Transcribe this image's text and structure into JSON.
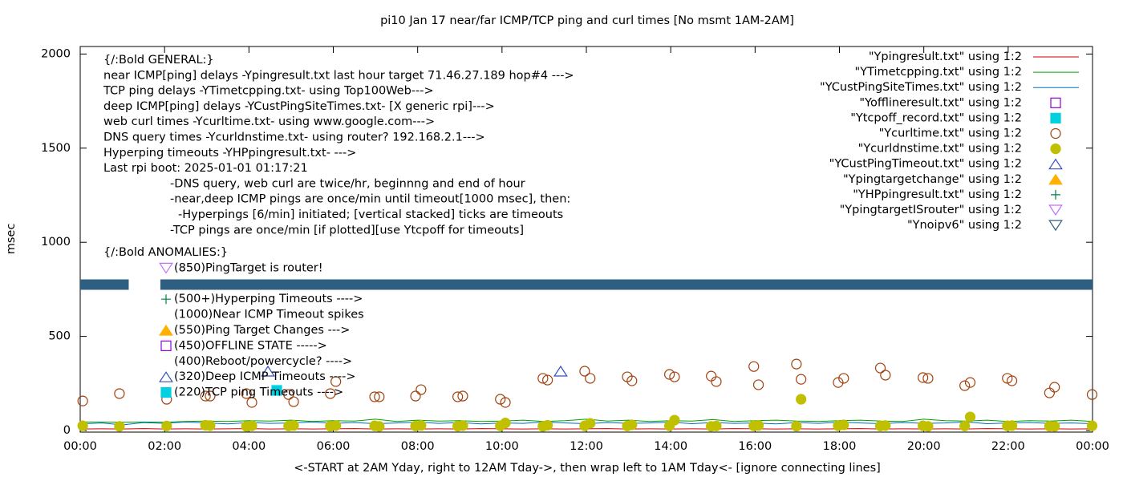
{
  "chart_data": {
    "type": "line",
    "title": "pi10 Jan 17  near/far ICMP/TCP ping and curl times [No msmt 1AM-2AM]",
    "xlabel": "<-START at 2AM Yday, right to 12AM Tday->, then wrap left to 1AM Tday<- [ignore connecting lines]",
    "ylabel": "msec",
    "xlim": [
      0,
      24
    ],
    "xticks": [
      {
        "value": 0,
        "label": "00:00"
      },
      {
        "value": 2,
        "label": "02:00"
      },
      {
        "value": 4,
        "label": "04:00"
      },
      {
        "value": 6,
        "label": "06:00"
      },
      {
        "value": 8,
        "label": "08:00"
      },
      {
        "value": 10,
        "label": "10:00"
      },
      {
        "value": 12,
        "label": "12:00"
      },
      {
        "value": 14,
        "label": "14:00"
      },
      {
        "value": 16,
        "label": "16:00"
      },
      {
        "value": 18,
        "label": "18:00"
      },
      {
        "value": 20,
        "label": "20:00"
      },
      {
        "value": 22,
        "label": "22:00"
      },
      {
        "value": 24,
        "label": "00:00"
      }
    ],
    "ylim": [
      0,
      2040
    ],
    "yticks": [
      0,
      500,
      1000,
      1500,
      2000
    ],
    "grid": false,
    "legend": "top-right",
    "annotations": [
      "{/:Bold GENERAL:}",
      "near ICMP[ping] delays -Ypingresult.txt last hour target 71.46.27.189 hop#4 --->",
      "TCP ping delays -YTimetcpping.txt- using Top100Web--->",
      "deep ICMP[ping] delays -YCustPingSiteTimes.txt- [X generic rpi]--->",
      "web curl times -Ycurltime.txt- using www.google.com--->",
      "DNS query times -Ycurldnstime.txt- using router? 192.168.2.1--->",
      "Hyperping timeouts -YHPpingresult.txt- --->",
      "Last rpi boot: 2025-01-01 01:17:21",
      "-DNS query, web curl are twice/hr, beginnng and end of hour",
      "-near,deep ICMP pings are once/min until timeout[1000 msec], then:",
      "-Hyperpings [6/min] initiated; [vertical stacked] ticks are timeouts",
      "-TCP pings are once/min [if plotted][use Ytcpoff for timeouts]",
      "{/:Bold ANOMALIES:}",
      "(850)PingTarget is router!",
      "(500+)Hyperping Timeouts ---->",
      "(1000)Near ICMP Timeout spikes",
      "(550)Ping Target Changes --->",
      "(450)OFFLINE STATE ----->",
      "(400)Reboot/powercycle? ---->",
      "(320)Deep ICMP Timeouts ---->",
      "(220)TCP ping Timeouts ---->"
    ],
    "series": [
      {
        "name": "\"Ypingresult.txt\" using 1:2",
        "color": "#cc0000",
        "marker": "line",
        "x": [
          0,
          0.5,
          1,
          1.5,
          2,
          2.5,
          3,
          3.5,
          4,
          4.5,
          5,
          5.5,
          6,
          6.5,
          7,
          7.5,
          8,
          8.5,
          9,
          9.5,
          10,
          10.5,
          11,
          11.5,
          12,
          12.5,
          13,
          13.5,
          14,
          14.5,
          15,
          15.5,
          16,
          16.5,
          17,
          17.5,
          18,
          18.5,
          19,
          19.5,
          20,
          20.5,
          21,
          21.5,
          22,
          22.5,
          23,
          23.5,
          24
        ],
        "values": [
          8,
          9,
          8,
          10,
          8,
          9,
          8,
          9,
          10,
          8,
          9,
          8,
          9,
          10,
          8,
          9,
          8,
          9,
          8,
          10,
          9,
          8,
          9,
          8,
          9,
          10,
          8,
          9,
          8,
          9,
          8,
          10,
          9,
          8,
          9,
          8,
          9,
          10,
          8,
          9,
          8,
          9,
          8,
          10,
          9,
          8,
          9,
          8,
          9
        ]
      },
      {
        "name": "\"YTimetcpping.txt\" using 1:2",
        "color": "#00a000",
        "marker": "line",
        "x": [
          0,
          0.5,
          1,
          1.5,
          2,
          2.5,
          3,
          3.5,
          4,
          4.5,
          5,
          5.5,
          6,
          6.5,
          7,
          7.5,
          8,
          8.5,
          9,
          9.5,
          10,
          10.5,
          11,
          11.5,
          12,
          12.5,
          13,
          13.5,
          14,
          14.5,
          15,
          15.5,
          16,
          16.5,
          17,
          17.5,
          18,
          18.5,
          19,
          19.5,
          20,
          20.5,
          21,
          21.5,
          22,
          22.5,
          23,
          23.5,
          24
        ],
        "values": [
          45,
          45,
          44,
          45,
          44,
          48,
          50,
          48,
          52,
          50,
          55,
          48,
          52,
          50,
          60,
          48,
          55,
          50,
          52,
          48,
          50,
          55,
          48,
          52,
          60,
          50,
          55,
          48,
          52,
          50,
          58,
          48,
          52,
          55,
          50,
          48,
          52,
          55,
          50,
          48,
          60,
          52,
          50,
          55,
          48,
          52,
          50,
          55,
          48
        ]
      },
      {
        "name": "\"YCustPingSiteTimes.txt\" using 1:2",
        "color": "#0070c0",
        "marker": "line",
        "x": [
          0,
          0.5,
          1,
          1.5,
          2,
          2.5,
          3,
          3.5,
          4,
          4.5,
          5,
          5.5,
          6,
          6.5,
          7,
          7.5,
          8,
          8.5,
          9,
          9.5,
          10,
          10.5,
          11,
          11.5,
          12,
          12.5,
          13,
          13.5,
          14,
          14.5,
          15,
          15.5,
          16,
          16.5,
          17,
          17.5,
          18,
          18.5,
          19,
          19.5,
          20,
          20.5,
          21,
          21.5,
          22,
          22.5,
          23,
          23.5,
          24
        ],
        "values": [
          35,
          40,
          30,
          42,
          38,
          45,
          40,
          35,
          42,
          38,
          40,
          45,
          38,
          42,
          36,
          40,
          44,
          38,
          42,
          35,
          40,
          38,
          45,
          40,
          36,
          42,
          38,
          40,
          44,
          36,
          42,
          38,
          40,
          35,
          42,
          38,
          44,
          40,
          36,
          42,
          38,
          40,
          45,
          36,
          40,
          42,
          38,
          40,
          36
        ]
      },
      {
        "name": "\"Yofflineresult.txt\" using 1:2",
        "color": "#9400d3",
        "marker": "square-open",
        "x": [],
        "values": []
      },
      {
        "name": "\"Ytcpoff_record.txt\" using 1:2",
        "color": "#00d0e0",
        "marker": "square",
        "x": [
          4.66
        ],
        "values": [
          213
        ]
      },
      {
        "name": "\"Ycurltime.txt\" using 1:2",
        "color": "#a0410d",
        "marker": "circle-open",
        "x": [
          0.06,
          0.93,
          2.05,
          2.97,
          3.08,
          3.94,
          4.07,
          4.94,
          5.06,
          5.93,
          6.06,
          6.98,
          7.09,
          7.95,
          8.08,
          8.95,
          9.07,
          9.96,
          10.08,
          10.97,
          11.08,
          11.96,
          12.09,
          12.97,
          13.08,
          13.97,
          14.09,
          14.96,
          15.08,
          15.97,
          16.08,
          16.98,
          17.09,
          17.97,
          18.1,
          18.97,
          19.09,
          19.98,
          20.1,
          20.97,
          21.1,
          21.98,
          22.09,
          22.98,
          23.1,
          23.99
        ],
        "values": [
          157,
          196,
          166,
          183,
          183,
          196,
          149,
          191,
          153,
          196,
          260,
          179,
          179,
          183,
          217,
          179,
          183,
          166,
          149,
          277,
          268,
          315,
          277,
          285,
          264,
          298,
          285,
          289,
          260,
          340,
          243,
          353,
          272,
          255,
          277,
          332,
          294,
          281,
          277,
          238,
          255,
          277,
          264,
          200,
          230,
          191
        ]
      },
      {
        "name": "\"Ycurldnstime.txt\" using 1:2",
        "color": "#c0c000",
        "marker": "circle",
        "x": [
          0.06,
          0.93,
          2.05,
          2.97,
          3.08,
          3.94,
          4.07,
          4.94,
          5.06,
          5.93,
          6.06,
          6.98,
          7.09,
          7.95,
          8.08,
          8.95,
          9.07,
          9.96,
          10.08,
          10.97,
          11.08,
          11.96,
          12.09,
          12.97,
          13.08,
          13.97,
          14.09,
          14.96,
          15.08,
          15.97,
          16.08,
          16.98,
          17.09,
          17.97,
          18.1,
          18.97,
          19.09,
          19.98,
          20.1,
          20.97,
          21.1,
          21.98,
          22.09,
          22.98,
          23.1,
          23.99
        ],
        "values": [
          25,
          22,
          24,
          28,
          26,
          22,
          25,
          24,
          27,
          23,
          26,
          25,
          22,
          24,
          27,
          23,
          26,
          25,
          40,
          22,
          28,
          25,
          38,
          24,
          30,
          25,
          55,
          22,
          24,
          25,
          27,
          23,
          166,
          25,
          30,
          24,
          26,
          25,
          22,
          24,
          72,
          25,
          26,
          23,
          22,
          25
        ]
      },
      {
        "name": "\"YCustPingTimeout.txt\" using 1:2",
        "color": "#3050c0",
        "marker": "triangle-open",
        "x": [
          4.45,
          11.39
        ],
        "values": [
          315,
          315
        ]
      },
      {
        "name": "\"Ypingtargetchange\" using 1:2",
        "color": "#ffb000",
        "marker": "triangle",
        "x": [],
        "values": []
      },
      {
        "name": "\"YHPpingresult.txt\" using 1:2",
        "color": "#008040",
        "marker": "plus",
        "x": [],
        "values": []
      },
      {
        "name": "\"YpingtargetISrouter\" using 1:2",
        "color": "#c070ff",
        "marker": "triangle-down-open",
        "x": [],
        "values": []
      },
      {
        "name": "\"Ynoipv6\" using 1:2",
        "color": "#2f5f80",
        "marker": "triangle-down-open",
        "band": true,
        "x": [
          0,
          1.15,
          1.5,
          1.9,
          24
        ],
        "values": [
          775,
          775,
          null,
          775,
          775
        ]
      }
    ]
  }
}
